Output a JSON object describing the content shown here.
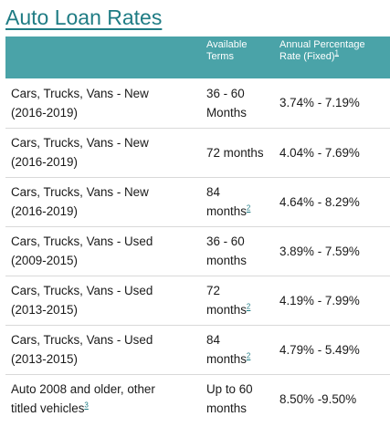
{
  "title": "Auto Loan Rates",
  "table": {
    "headers": {
      "vehicle": "",
      "terms_line1": "Available",
      "terms_line2": "Terms",
      "apr_line1": "Annual Percentage",
      "apr_line2": "Rate (Fixed)",
      "apr_ref": "1"
    },
    "rows": [
      {
        "vehicle_line1": "Cars, Trucks, Vans - New",
        "vehicle_line2": "(2016-2019)",
        "vehicle_ref": "",
        "terms_line1": "36 - 60",
        "terms_line2": "Months",
        "terms_ref": "",
        "apr": "3.74% - 7.19%"
      },
      {
        "vehicle_line1": "Cars, Trucks, Vans - New",
        "vehicle_line2": "(2016-2019)",
        "vehicle_ref": "",
        "terms_line1": "72 months",
        "terms_line2": "",
        "terms_ref": "",
        "apr": "4.04% - 7.69%"
      },
      {
        "vehicle_line1": "Cars, Trucks, Vans - New",
        "vehicle_line2": "(2016-2019)",
        "vehicle_ref": "",
        "terms_line1": "84",
        "terms_line2": "months",
        "terms_ref": "2",
        "apr": "4.64% - 8.29%"
      },
      {
        "vehicle_line1": "Cars, Trucks, Vans - Used",
        "vehicle_line2": "(2009-2015)",
        "vehicle_ref": "",
        "terms_line1": "36 - 60",
        "terms_line2": "months",
        "terms_ref": "",
        "apr": "3.89% - 7.59%"
      },
      {
        "vehicle_line1": "Cars, Trucks, Vans - Used",
        "vehicle_line2": "(2013-2015)",
        "vehicle_ref": "",
        "terms_line1": "72",
        "terms_line2": "months",
        "terms_ref": "2",
        "apr": "4.19% - 7.99%"
      },
      {
        "vehicle_line1": "Cars, Trucks, Vans - Used",
        "vehicle_line2": "(2013-2015)",
        "vehicle_ref": "",
        "terms_line1": "84",
        "terms_line2": "months",
        "terms_ref": "2",
        "apr": "4.79% - 5.49%"
      },
      {
        "vehicle_line1": "Auto 2008 and older, other",
        "vehicle_line2": "titled vehicles",
        "vehicle_ref": "3",
        "terms_line1": "Up to 60",
        "terms_line2": "months",
        "terms_ref": "",
        "apr": "8.50% -9.50%"
      }
    ]
  },
  "colors": {
    "title": "#1f7c84",
    "header_background": "#4aa3a8",
    "header_text": "#ffffff",
    "footnote_link": "#1f7c84",
    "row_divider": "#d9d9d9"
  }
}
